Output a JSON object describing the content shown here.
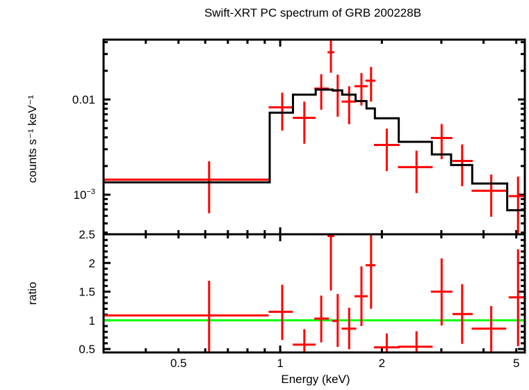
{
  "chart_data": [
    {
      "type": "line",
      "panel": "spectrum",
      "title": "Swift-XRT PC spectrum of GRB 200228B",
      "ylabel": "counts s⁻¹ keV⁻¹",
      "xscale": "log",
      "yscale": "log",
      "xlim": [
        0.3,
        5.3
      ],
      "ylim": [
        0.000384,
        0.0425
      ],
      "yticks": [
        {
          "value": 0.01,
          "label": "0.01"
        },
        {
          "value": 0.001,
          "label": "10",
          "sup": "−3"
        }
      ],
      "colors": {
        "data": "#ff0000",
        "model": "#000000"
      },
      "data": [
        {
          "x": 0.616,
          "xlo": 0.3,
          "xhi": 0.924,
          "y": 0.00144,
          "ylo": 0.000638,
          "yhi": 0.00225
        },
        {
          "x": 1.014,
          "xlo": 0.924,
          "xhi": 1.09,
          "y": 0.00827,
          "ylo": 0.00472,
          "yhi": 0.01178
        },
        {
          "x": 1.179,
          "xlo": 1.09,
          "xhi": 1.274,
          "y": 0.00642,
          "ylo": 0.00343,
          "yhi": 0.0095
        },
        {
          "x": 1.323,
          "xlo": 1.262,
          "xhi": 1.394,
          "y": 0.01302,
          "ylo": 0.0078,
          "yhi": 0.0184
        },
        {
          "x": 1.413,
          "xlo": 1.381,
          "xhi": 1.446,
          "y": 0.0313,
          "ylo": 0.0191,
          "yhi": 0.05
        },
        {
          "x": 1.48,
          "xlo": 1.426,
          "xhi": 1.483,
          "y": 0.01238,
          "ylo": 0.0066,
          "yhi": 0.01822
        },
        {
          "x": 1.6,
          "xlo": 1.52,
          "xhi": 1.68,
          "y": 0.0095,
          "ylo": 0.00549,
          "yhi": 0.01377
        },
        {
          "x": 1.74,
          "xlo": 1.659,
          "xhi": 1.816,
          "y": 0.01377,
          "ylo": 0.00864,
          "yhi": 0.01892
        },
        {
          "x": 1.858,
          "xlo": 1.789,
          "xhi": 1.915,
          "y": 0.01575,
          "ylo": 0.0095,
          "yhi": 0.022
        },
        {
          "x": 2.068,
          "xlo": 1.894,
          "xhi": 2.256,
          "y": 0.00333,
          "ylo": 0.00177,
          "yhi": 0.00493
        },
        {
          "x": 2.533,
          "xlo": 2.231,
          "xhi": 2.828,
          "y": 0.00195,
          "ylo": 0.00104,
          "yhi": 0.0029
        },
        {
          "x": 3.006,
          "xlo": 2.793,
          "xhi": 3.236,
          "y": 0.00394,
          "ylo": 0.00236,
          "yhi": 0.00552
        },
        {
          "x": 3.457,
          "xlo": 3.236,
          "xhi": 3.717,
          "y": 0.00226,
          "ylo": 0.00123,
          "yhi": 0.00337
        },
        {
          "x": 4.215,
          "xlo": 3.687,
          "xhi": 4.667,
          "y": 0.0011,
          "ylo": 0.000587,
          "yhi": 0.00163
        },
        {
          "x": 5.06,
          "xlo": 4.747,
          "xhi": 5.6,
          "y": 0.000966,
          "ylo": 0.0003,
          "yhi": 0.00155
        }
      ],
      "model_edges": [
        0.3,
        0.931,
        1.091,
        1.274,
        1.431,
        1.526,
        1.672,
        1.801,
        1.907,
        2.244,
        2.812,
        3.206,
        3.703,
        4.7,
        5.44
      ],
      "model_values": [
        0.00135,
        0.00726,
        0.01125,
        0.0127,
        0.01245,
        0.01125,
        0.00962,
        0.00804,
        0.00635,
        0.00359,
        0.00265,
        0.00205,
        0.00131,
        0.000687
      ]
    },
    {
      "type": "scatter",
      "panel": "ratio",
      "xlabel": "Energy (keV)",
      "ylabel": "ratio",
      "xscale": "log",
      "yscale": "linear",
      "xlim": [
        0.3,
        5.3
      ],
      "ylim": [
        0.44,
        2.5
      ],
      "xticks": [
        {
          "value": 0.5,
          "label": "0.5"
        },
        {
          "value": 1,
          "label": "1"
        },
        {
          "value": 2,
          "label": "2"
        },
        {
          "value": 5,
          "label": "5"
        }
      ],
      "yticks": [
        {
          "value": 0.5,
          "label": "0.5"
        },
        {
          "value": 1,
          "label": "1"
        },
        {
          "value": 1.5,
          "label": "1.5"
        },
        {
          "value": 2,
          "label": "2"
        },
        {
          "value": 2.5,
          "label": "2.5"
        }
      ],
      "reference_line": 1,
      "colors": {
        "data": "#ff0000",
        "reference": "#00ff00"
      },
      "data": [
        {
          "y": 1.085,
          "ylo": 0.4,
          "yhi": 1.69
        },
        {
          "y": 1.149,
          "ylo": 0.656,
          "yhi": 1.62
        },
        {
          "y": 0.576,
          "ylo": 0.4,
          "yhi": 0.846
        },
        {
          "y": 1.03,
          "ylo": 0.616,
          "yhi": 1.43
        },
        {
          "y": 2.47,
          "ylo": 1.52,
          "yhi": 3.0
        },
        {
          "y": 0.99,
          "ylo": 0.535,
          "yhi": 1.46
        },
        {
          "y": 0.855,
          "ylo": 0.495,
          "yhi": 1.22
        },
        {
          "y": 1.42,
          "ylo": 0.9,
          "yhi": 1.94
        },
        {
          "y": 1.96,
          "ylo": 1.2,
          "yhi": 3.0
        },
        {
          "y": 0.53,
          "ylo": 0.4,
          "yhi": 0.77
        },
        {
          "y": 0.54,
          "ylo": 0.4,
          "yhi": 0.81
        },
        {
          "y": 1.5,
          "ylo": 0.91,
          "yhi": 2.08
        },
        {
          "y": 1.11,
          "ylo": 0.59,
          "yhi": 1.63
        },
        {
          "y": 0.855,
          "ylo": 0.4,
          "yhi": 1.25
        },
        {
          "y": 1.4,
          "ylo": 0.55,
          "yhi": 2.24
        }
      ]
    }
  ]
}
